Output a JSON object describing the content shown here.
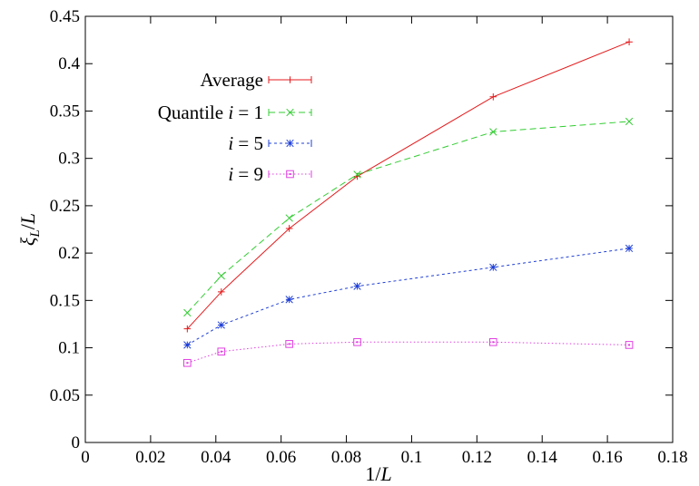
{
  "chart_data": {
    "type": "line",
    "xlabel": "1/L",
    "ylabel": "ξ_L/L",
    "xlim": [
      0,
      0.18
    ],
    "ylim": [
      0,
      0.45
    ],
    "xticks": [
      0,
      0.02,
      0.04,
      0.06,
      0.08,
      0.1,
      0.12,
      0.14,
      0.16,
      0.18
    ],
    "xtick_labels": [
      "0",
      "0.02",
      "0.04",
      "0.06",
      "0.08",
      "0.1",
      "0.12",
      "0.14",
      "0.16",
      "0.18"
    ],
    "yticks": [
      0,
      0.05,
      0.1,
      0.15,
      0.2,
      0.25,
      0.3,
      0.35,
      0.4,
      0.45
    ],
    "ytick_labels": [
      "0",
      "0.05",
      "0.1",
      "0.15",
      "0.2",
      "0.25",
      "0.3",
      "0.35",
      "0.4",
      "0.45"
    ],
    "grid": false,
    "legend_position": "top-left",
    "x": [
      0.03125,
      0.041667,
      0.0625,
      0.083333,
      0.125,
      0.166667
    ],
    "series": [
      {
        "name": "Average",
        "legend_prefix": "Average",
        "legend_math": "",
        "values": [
          0.12,
          0.159,
          0.226,
          0.281,
          0.365,
          0.423
        ],
        "color": "#e41a1c",
        "marker": "plus",
        "dash": ""
      },
      {
        "name": "Quantile i = 1",
        "legend_prefix": "Quantile ",
        "legend_math": "i = 1",
        "values": [
          0.137,
          0.176,
          0.237,
          0.283,
          0.328,
          0.339
        ],
        "color": "#33cc33",
        "marker": "cross",
        "dash": "7,4"
      },
      {
        "name": "i = 5",
        "legend_prefix": "",
        "legend_math": "i = 5",
        "values": [
          0.103,
          0.124,
          0.151,
          0.165,
          0.185,
          0.205
        ],
        "color": "#1f3fd6",
        "marker": "star",
        "dash": "3,3"
      },
      {
        "name": "i = 9",
        "legend_prefix": "",
        "legend_math": "i = 9",
        "values": [
          0.084,
          0.096,
          0.104,
          0.106,
          0.106,
          0.103
        ],
        "color": "#e040e0",
        "marker": "square",
        "dash": "1.5,2.5"
      }
    ]
  }
}
